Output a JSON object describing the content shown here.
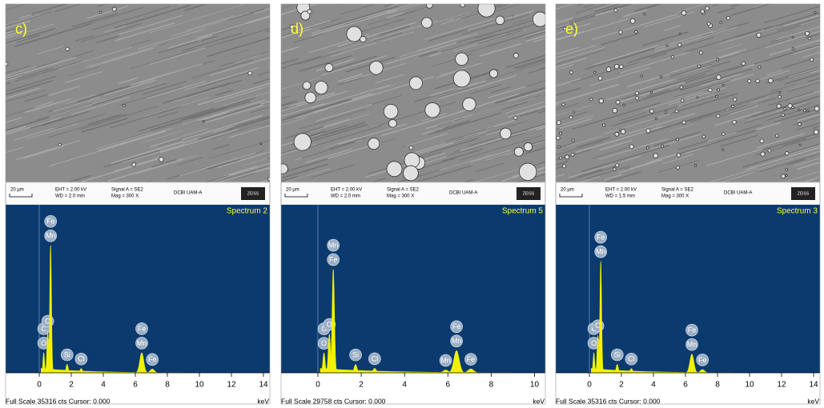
{
  "chart_data": [
    {
      "type": "spectrum",
      "panel_label": "c)",
      "title": "Spectrum 2",
      "footer": "Full Scale 35316 cts Cursor: 0.000",
      "x_label": "keV",
      "sem": {
        "scale": "20 µm",
        "eht": "EHT = 2.00 kV",
        "wd": "WD = 2.0 mm",
        "signal": "Signal A = SE2",
        "mag": "Mag = 300 X",
        "lab": "DCBI UAM-A",
        "brand": "ZEISS"
      },
      "xlim": [
        -2.1,
        14.4
      ],
      "xticks": [
        0,
        2,
        4,
        6,
        8,
        10,
        12,
        14
      ],
      "ylim": [
        0,
        35316
      ],
      "peaks": [
        {
          "labels": [
            "C",
            "O"
          ],
          "x": 0.28,
          "y": 4300
        },
        {
          "labels": [
            "O"
          ],
          "x": 0.53,
          "y": 9000
        },
        {
          "labels": [
            "Fe",
            "Mn"
          ],
          "x": 0.71,
          "y": 27300
        },
        {
          "labels": [
            "Si"
          ],
          "x": 1.74,
          "y": 1800
        },
        {
          "labels": [
            "Cl"
          ],
          "x": 2.62,
          "y": 900
        },
        {
          "labels": [
            "Fe",
            "Mn"
          ],
          "x": 6.4,
          "y": 4300
        },
        {
          "labels": [
            "Fe"
          ],
          "x": 7.06,
          "y": 800
        }
      ]
    },
    {
      "type": "spectrum",
      "panel_label": "d)",
      "title": "Spectrum 5",
      "footer": "Full Scale 29758 cts Cursor: 0.000",
      "x_label": "keV",
      "sem": {
        "scale": "20 µm",
        "eht": "EHT = 2.00 kV",
        "wd": "WD = 2.0 mm",
        "signal": "Signal A = SE2",
        "mag": "Mag = 300 X",
        "lab": "DCBI UAM-A",
        "brand": "ZEISS"
      },
      "xlim": [
        -1.7,
        10.5
      ],
      "xticks": [
        0,
        2,
        4,
        6,
        8,
        10
      ],
      "ylim": [
        0,
        29758
      ],
      "peaks": [
        {
          "labels": [
            "C",
            "O"
          ],
          "x": 0.28,
          "y": 3600
        },
        {
          "labels": [
            "O"
          ],
          "x": 0.53,
          "y": 7000
        },
        {
          "labels": [
            "Mn",
            "Fe"
          ],
          "x": 0.71,
          "y": 18700
        },
        {
          "labels": [
            "Si"
          ],
          "x": 1.74,
          "y": 1500
        },
        {
          "labels": [
            "Cl"
          ],
          "x": 2.62,
          "y": 800
        },
        {
          "labels": [
            "Mn"
          ],
          "x": 5.9,
          "y": 500
        },
        {
          "labels": [
            "Fe",
            "Mn"
          ],
          "x": 6.4,
          "y": 4000
        },
        {
          "labels": [
            "Fe"
          ],
          "x": 7.06,
          "y": 700
        }
      ]
    },
    {
      "type": "spectrum",
      "panel_label": "e)",
      "title": "Spectrum 3",
      "footer": "Full Scale 35316 cts Cursor: 0.000",
      "x_label": "keV",
      "sem": {
        "scale": "20 µm",
        "eht": "EHT = 2.00 kV",
        "wd": "WD = 1.5 mm",
        "signal": "Signal A = SE2",
        "mag": "Mag = 300 X",
        "lab": "DCBI UAM-A",
        "brand": "ZEISS"
      },
      "xlim": [
        -2.1,
        14.4
      ],
      "xticks": [
        0,
        2,
        4,
        6,
        8,
        10,
        12,
        14
      ],
      "ylim": [
        0,
        35316
      ],
      "peaks": [
        {
          "labels": [
            "C",
            "O"
          ],
          "x": 0.28,
          "y": 4300
        },
        {
          "labels": [
            "O"
          ],
          "x": 0.53,
          "y": 8000
        },
        {
          "labels": [
            "Fe",
            "Mn"
          ],
          "x": 0.71,
          "y": 23900
        },
        {
          "labels": [
            "Si"
          ],
          "x": 1.74,
          "y": 1800
        },
        {
          "labels": [
            "Cl"
          ],
          "x": 2.62,
          "y": 900
        },
        {
          "labels": [
            "Fe",
            "Mn"
          ],
          "x": 6.4,
          "y": 4000
        },
        {
          "labels": [
            "Fe"
          ],
          "x": 7.06,
          "y": 700
        }
      ]
    }
  ]
}
